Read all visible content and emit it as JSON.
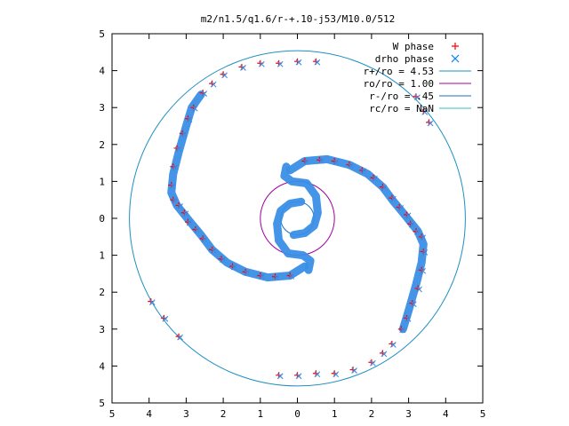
{
  "chart_data": {
    "type": "scatter",
    "title": "m2/n1.5/q1.6/r-+.10-j53/M10.0/512",
    "xlabel": "",
    "ylabel": "",
    "xlim": [
      -5,
      5
    ],
    "ylim": [
      -5,
      5
    ],
    "x_tick_labels": [
      "5",
      "4",
      "3",
      "2",
      "1",
      "0",
      "1",
      "2",
      "3",
      "4",
      "5"
    ],
    "y_tick_labels": [
      "5",
      "4",
      "3",
      "2",
      "1",
      "0",
      "1",
      "2",
      "3",
      "4",
      "5"
    ],
    "grid": false,
    "legend_position": "top-right",
    "legend": [
      {
        "label": "W phase",
        "color": "#ff0000",
        "marker": "plus"
      },
      {
        "label": "drho phase",
        "color": "#0080ff",
        "marker": "cross"
      },
      {
        "label": "r+/ro = 4.53",
        "color": "#1e90c0",
        "marker": "line"
      },
      {
        "label": "ro/ro = 1.00",
        "color": "#a000a0",
        "marker": "line"
      },
      {
        "label": "r-/ro = .45",
        "color": "#1e6fc0",
        "marker": "line"
      },
      {
        "label": "rc/ro = NaN",
        "color": "#30c0c0",
        "marker": "line"
      }
    ],
    "circles": [
      {
        "name": "r+/ro = 4.53",
        "radius": 4.53,
        "color": "#1e90c0"
      },
      {
        "name": "ro/ro = 1.00",
        "radius": 1.0,
        "color": "#a000a0"
      },
      {
        "name": "r-/ro = .45",
        "radius": 0.45,
        "color": "#1e6fc0"
      }
    ],
    "colors": {
      "w_phase": "#ff0000",
      "drho_phase": "#3a8ee6",
      "axis": "#000000"
    },
    "series": [
      {
        "name": "W phase",
        "points": [
          [
            0.2,
            1.55
          ],
          [
            0.6,
            1.58
          ],
          [
            1.0,
            1.55
          ],
          [
            1.4,
            1.45
          ],
          [
            1.75,
            1.3
          ],
          [
            2.05,
            1.1
          ],
          [
            2.3,
            0.85
          ],
          [
            2.55,
            0.55
          ],
          [
            2.75,
            0.3
          ],
          [
            2.95,
            0.1
          ],
          [
            3.05,
            -0.15
          ],
          [
            3.2,
            -0.35
          ],
          [
            3.35,
            -0.5
          ],
          [
            3.4,
            -0.9
          ],
          [
            3.35,
            -1.4
          ],
          [
            3.25,
            -1.9
          ],
          [
            3.1,
            -2.3
          ],
          [
            2.95,
            -2.7
          ],
          [
            2.8,
            -3.0
          ],
          [
            2.55,
            -3.4
          ],
          [
            2.3,
            -3.65
          ],
          [
            2.0,
            -3.9
          ],
          [
            1.5,
            -4.1
          ],
          [
            1.0,
            -4.2
          ],
          [
            0.5,
            -4.2
          ],
          [
            0.0,
            -4.25
          ],
          [
            -0.5,
            -4.25
          ],
          [
            -0.2,
            -1.55
          ],
          [
            -0.6,
            -1.58
          ],
          [
            -1.0,
            -1.55
          ],
          [
            -1.4,
            -1.45
          ],
          [
            -1.75,
            -1.3
          ],
          [
            -2.05,
            -1.1
          ],
          [
            -2.3,
            -0.85
          ],
          [
            -2.55,
            -0.55
          ],
          [
            -2.75,
            -0.3
          ],
          [
            -2.95,
            -0.1
          ],
          [
            -3.05,
            0.15
          ],
          [
            -3.2,
            0.35
          ],
          [
            -3.35,
            0.5
          ],
          [
            -3.4,
            0.9
          ],
          [
            -3.35,
            1.4
          ],
          [
            -3.25,
            1.9
          ],
          [
            -3.1,
            2.3
          ],
          [
            -2.95,
            2.7
          ],
          [
            -2.8,
            3.0
          ],
          [
            -2.55,
            3.4
          ],
          [
            -2.3,
            3.65
          ],
          [
            -2.0,
            3.9
          ],
          [
            -1.5,
            4.1
          ],
          [
            -1.0,
            4.2
          ],
          [
            -0.5,
            4.2
          ],
          [
            0.0,
            4.25
          ],
          [
            0.5,
            4.25
          ],
          [
            3.2,
            3.3
          ],
          [
            3.55,
            2.6
          ],
          [
            3.4,
            2.9
          ],
          [
            -3.95,
            -2.25
          ],
          [
            -3.6,
            -2.7
          ],
          [
            -3.2,
            -3.2
          ]
        ]
      },
      {
        "name": "drho phase",
        "points": [
          [
            0.2,
            1.55
          ],
          [
            0.6,
            1.58
          ],
          [
            1.0,
            1.55
          ],
          [
            1.4,
            1.45
          ],
          [
            1.75,
            1.3
          ],
          [
            2.05,
            1.1
          ],
          [
            2.3,
            0.85
          ],
          [
            2.55,
            0.55
          ],
          [
            2.75,
            0.3
          ],
          [
            2.95,
            0.1
          ],
          [
            3.05,
            -0.15
          ],
          [
            3.2,
            -0.35
          ],
          [
            3.35,
            -0.5
          ],
          [
            3.4,
            -0.9
          ],
          [
            3.35,
            -1.4
          ],
          [
            3.25,
            -1.9
          ],
          [
            3.1,
            -2.3
          ],
          [
            2.95,
            -2.7
          ],
          [
            2.8,
            -3.0
          ],
          [
            2.55,
            -3.4
          ],
          [
            2.3,
            -3.65
          ],
          [
            2.0,
            -3.9
          ],
          [
            1.5,
            -4.1
          ],
          [
            1.0,
            -4.2
          ],
          [
            0.5,
            -4.2
          ],
          [
            0.0,
            -4.25
          ],
          [
            -0.5,
            -4.25
          ],
          [
            -0.2,
            -1.55
          ],
          [
            -0.6,
            -1.58
          ],
          [
            -1.0,
            -1.55
          ],
          [
            -1.4,
            -1.45
          ],
          [
            -1.75,
            -1.3
          ],
          [
            -2.05,
            -1.1
          ],
          [
            -2.3,
            -0.85
          ],
          [
            -2.55,
            -0.55
          ],
          [
            -2.75,
            -0.3
          ],
          [
            -2.95,
            -0.1
          ],
          [
            -3.05,
            0.15
          ],
          [
            -3.2,
            0.35
          ],
          [
            -3.35,
            0.5
          ],
          [
            -3.4,
            0.9
          ],
          [
            -3.35,
            1.4
          ],
          [
            -3.25,
            1.9
          ],
          [
            -3.1,
            2.3
          ],
          [
            -2.95,
            2.7
          ],
          [
            -2.8,
            3.0
          ],
          [
            -2.55,
            3.4
          ],
          [
            -2.3,
            3.65
          ],
          [
            -2.0,
            3.9
          ],
          [
            -1.5,
            4.1
          ],
          [
            -1.0,
            4.2
          ],
          [
            -0.5,
            4.2
          ],
          [
            0.0,
            4.25
          ],
          [
            0.5,
            4.25
          ],
          [
            3.2,
            3.3
          ],
          [
            3.55,
            2.6
          ],
          [
            3.4,
            2.9
          ],
          [
            -3.95,
            -2.25
          ],
          [
            -3.6,
            -2.7
          ],
          [
            -3.2,
            -3.2
          ]
        ]
      }
    ],
    "arms": [
      {
        "name": "arm-outer-a",
        "points": [
          [
            -0.2,
            1.3
          ],
          [
            0.2,
            1.55
          ],
          [
            0.8,
            1.6
          ],
          [
            1.4,
            1.45
          ],
          [
            1.9,
            1.2
          ],
          [
            2.3,
            0.85
          ],
          [
            2.6,
            0.45
          ],
          [
            2.85,
            0.15
          ],
          [
            3.05,
            -0.1
          ],
          [
            3.25,
            -0.35
          ],
          [
            3.4,
            -0.7
          ],
          [
            3.35,
            -1.2
          ],
          [
            3.2,
            -1.8
          ],
          [
            3.0,
            -2.5
          ],
          [
            2.85,
            -3.0
          ]
        ]
      },
      {
        "name": "arm-outer-b",
        "points": [
          [
            0.2,
            -1.3
          ],
          [
            -0.2,
            -1.55
          ],
          [
            -0.8,
            -1.6
          ],
          [
            -1.4,
            -1.45
          ],
          [
            -1.9,
            -1.2
          ],
          [
            -2.3,
            -0.85
          ],
          [
            -2.6,
            -0.45
          ],
          [
            -2.85,
            -0.15
          ],
          [
            -3.05,
            0.1
          ],
          [
            -3.25,
            0.35
          ],
          [
            -3.4,
            0.7
          ],
          [
            -3.35,
            1.2
          ],
          [
            -3.2,
            1.8
          ],
          [
            -3.0,
            2.5
          ],
          [
            -2.85,
            3.0
          ],
          [
            -2.6,
            3.35
          ]
        ]
      },
      {
        "name": "arm-inner-a",
        "points": [
          [
            -0.3,
            1.4
          ],
          [
            -0.35,
            1.15
          ],
          [
            -0.15,
            1.0
          ],
          [
            0.25,
            0.95
          ],
          [
            0.5,
            0.6
          ],
          [
            0.55,
            0.15
          ],
          [
            0.45,
            -0.2
          ],
          [
            0.2,
            -0.4
          ],
          [
            -0.1,
            -0.45
          ]
        ]
      },
      {
        "name": "arm-inner-b",
        "points": [
          [
            0.3,
            -1.4
          ],
          [
            0.35,
            -1.15
          ],
          [
            0.15,
            -1.0
          ],
          [
            -0.25,
            -0.95
          ],
          [
            -0.5,
            -0.6
          ],
          [
            -0.55,
            -0.15
          ],
          [
            -0.45,
            0.2
          ],
          [
            -0.2,
            0.4
          ],
          [
            0.1,
            0.45
          ]
        ]
      }
    ]
  }
}
